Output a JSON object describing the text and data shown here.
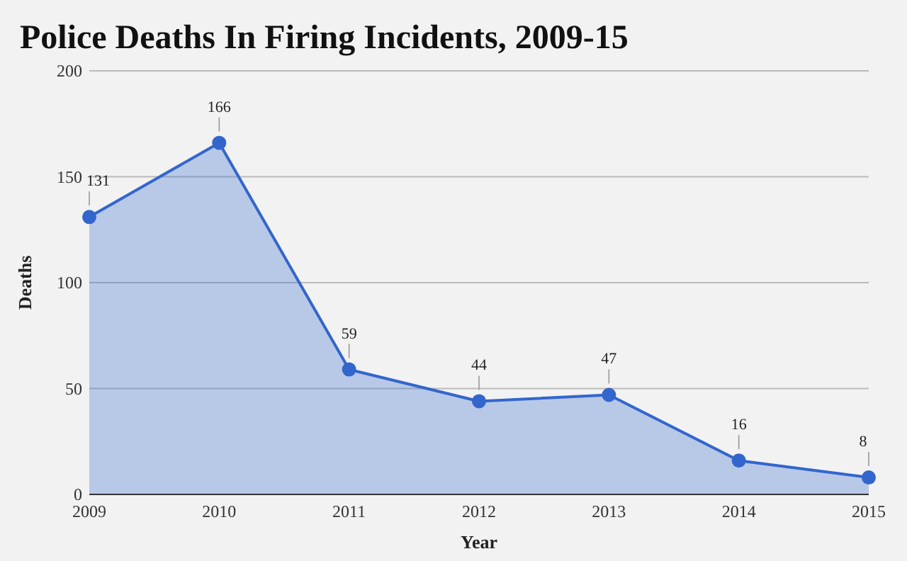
{
  "chart_data": {
    "type": "area",
    "title": "Police Deaths In Firing Incidents, 2009-15",
    "xlabel": "Year",
    "ylabel": "Deaths",
    "categories": [
      "2009",
      "2010",
      "2011",
      "2012",
      "2013",
      "2014",
      "2015"
    ],
    "series": [
      {
        "color": "#3366cc",
        "values": [
          131,
          166,
          59,
          44,
          47,
          16,
          8
        ]
      }
    ],
    "ylim": [
      0,
      200
    ],
    "yticks": [
      0,
      50,
      100,
      150,
      200
    ],
    "grid": "y",
    "marker": "circle",
    "data_labels": true
  }
}
